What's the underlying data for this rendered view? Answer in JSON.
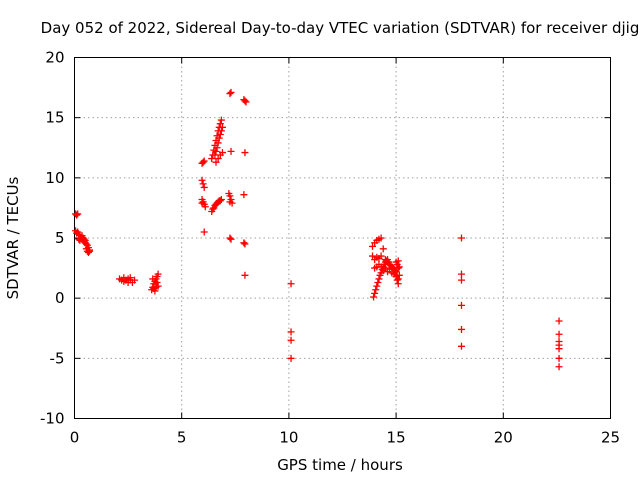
{
  "chart_data": {
    "type": "scatter",
    "title": "Day 052 of 2022, Sidereal Day-to-day VTEC variation (SDTVAR) for receiver djig",
    "xlabel": "GPS time / hours",
    "ylabel": "SDTVAR / TECUs",
    "xlim": [
      0,
      25
    ],
    "ylim": [
      -10,
      20
    ],
    "xticks": [
      0,
      5,
      10,
      15,
      20,
      25
    ],
    "yticks": [
      -10,
      -5,
      0,
      5,
      10,
      15,
      20
    ],
    "grid": true,
    "marker": "+",
    "color": "#ff0000",
    "series": [
      {
        "name": "SDTVAR",
        "points": [
          [
            0.05,
            7.0
          ],
          [
            0.1,
            6.9
          ],
          [
            0.15,
            7.0
          ],
          [
            0.05,
            5.6
          ],
          [
            0.1,
            5.4
          ],
          [
            0.15,
            5.5
          ],
          [
            0.2,
            5.3
          ],
          [
            0.25,
            5.2
          ],
          [
            0.3,
            5.0
          ],
          [
            0.35,
            4.9
          ],
          [
            0.4,
            4.8
          ],
          [
            0.45,
            4.7
          ],
          [
            0.5,
            4.6
          ],
          [
            0.55,
            4.5
          ],
          [
            0.6,
            4.4
          ],
          [
            0.65,
            4.2
          ],
          [
            0.7,
            4.0
          ],
          [
            0.6,
            3.9
          ],
          [
            0.55,
            4.1
          ],
          [
            0.2,
            4.9
          ],
          [
            0.25,
            4.8
          ],
          [
            0.35,
            5.2
          ],
          [
            0.4,
            5.0
          ],
          [
            0.45,
            4.9
          ],
          [
            0.5,
            4.8
          ],
          [
            0.65,
            3.8
          ],
          [
            0.7,
            3.9
          ],
          [
            2.1,
            1.6
          ],
          [
            2.2,
            1.5
          ],
          [
            2.3,
            1.4
          ],
          [
            2.4,
            1.5
          ],
          [
            2.5,
            1.6
          ],
          [
            2.6,
            1.5
          ],
          [
            2.7,
            1.3
          ],
          [
            2.8,
            1.5
          ],
          [
            2.5,
            1.3
          ],
          [
            2.3,
            1.7
          ],
          [
            2.6,
            1.7
          ],
          [
            3.6,
            0.7
          ],
          [
            3.65,
            0.9
          ],
          [
            3.7,
            1.2
          ],
          [
            3.75,
            1.4
          ],
          [
            3.8,
            1.6
          ],
          [
            3.85,
            1.8
          ],
          [
            3.9,
            2.0
          ],
          [
            3.65,
            1.6
          ],
          [
            3.7,
            0.8
          ],
          [
            3.8,
            0.9
          ],
          [
            3.9,
            1.0
          ],
          [
            3.75,
            0.6
          ],
          [
            3.85,
            1.3
          ],
          [
            5.95,
            11.2
          ],
          [
            6.0,
            11.3
          ],
          [
            6.05,
            11.4
          ],
          [
            5.95,
            9.8
          ],
          [
            6.0,
            9.5
          ],
          [
            6.05,
            9.2
          ],
          [
            5.95,
            8.2
          ],
          [
            6.0,
            8.0
          ],
          [
            6.05,
            7.8
          ],
          [
            6.1,
            7.6
          ],
          [
            5.95,
            7.9
          ],
          [
            6.05,
            5.5
          ],
          [
            6.4,
            11.6
          ],
          [
            6.45,
            11.9
          ],
          [
            6.5,
            12.3
          ],
          [
            6.55,
            12.7
          ],
          [
            6.6,
            13.1
          ],
          [
            6.65,
            13.5
          ],
          [
            6.7,
            13.9
          ],
          [
            6.75,
            14.2
          ],
          [
            6.8,
            14.5
          ],
          [
            6.85,
            14.8
          ],
          [
            6.6,
            12.2
          ],
          [
            6.65,
            12.5
          ],
          [
            6.7,
            12.9
          ],
          [
            6.75,
            13.3
          ],
          [
            6.8,
            13.6
          ],
          [
            6.85,
            13.9
          ],
          [
            6.9,
            14.2
          ],
          [
            6.55,
            11.9
          ],
          [
            6.6,
            11.3
          ],
          [
            6.7,
            11.6
          ],
          [
            6.8,
            11.9
          ],
          [
            6.9,
            12.1
          ],
          [
            6.4,
            7.2
          ],
          [
            6.45,
            7.4
          ],
          [
            6.5,
            7.5
          ],
          [
            6.55,
            7.7
          ],
          [
            6.6,
            7.8
          ],
          [
            6.65,
            7.9
          ],
          [
            6.7,
            8.0
          ],
          [
            6.75,
            8.1
          ],
          [
            6.8,
            8.1
          ],
          [
            6.85,
            8.2
          ],
          [
            7.25,
            17.0
          ],
          [
            7.3,
            17.1
          ],
          [
            7.3,
            12.2
          ],
          [
            7.2,
            8.7
          ],
          [
            7.25,
            8.5
          ],
          [
            7.3,
            8.2
          ],
          [
            7.35,
            7.9
          ],
          [
            7.25,
            8.0
          ],
          [
            7.25,
            5.0
          ],
          [
            7.3,
            4.9
          ],
          [
            7.9,
            16.5
          ],
          [
            7.95,
            16.4
          ],
          [
            8.0,
            16.3
          ],
          [
            7.95,
            12.1
          ],
          [
            7.9,
            8.6
          ],
          [
            7.9,
            4.6
          ],
          [
            7.95,
            4.5
          ],
          [
            7.95,
            1.9
          ],
          [
            10.1,
            1.2
          ],
          [
            10.1,
            -2.8
          ],
          [
            10.1,
            -3.5
          ],
          [
            10.1,
            -5.0
          ],
          [
            13.9,
            4.3
          ],
          [
            14.0,
            4.6
          ],
          [
            14.1,
            4.8
          ],
          [
            14.2,
            4.9
          ],
          [
            14.3,
            5.0
          ],
          [
            13.9,
            3.5
          ],
          [
            14.0,
            3.2
          ],
          [
            14.1,
            3.4
          ],
          [
            14.2,
            3.3
          ],
          [
            14.3,
            3.5
          ],
          [
            14.4,
            4.1
          ],
          [
            14.5,
            3.2
          ],
          [
            14.6,
            3.0
          ],
          [
            14.0,
            2.5
          ],
          [
            14.1,
            2.6
          ],
          [
            14.2,
            2.8
          ],
          [
            14.3,
            2.6
          ],
          [
            14.4,
            2.3
          ],
          [
            14.5,
            2.5
          ],
          [
            14.6,
            2.2
          ],
          [
            14.7,
            2.4
          ],
          [
            14.8,
            2.1
          ],
          [
            14.9,
            2.0
          ],
          [
            15.0,
            1.8
          ],
          [
            15.05,
            1.5
          ],
          [
            15.1,
            1.2
          ],
          [
            13.95,
            0.1
          ],
          [
            14.0,
            0.4
          ],
          [
            14.05,
            0.7
          ],
          [
            14.1,
            1.0
          ],
          [
            14.15,
            1.3
          ],
          [
            14.2,
            1.6
          ],
          [
            14.25,
            1.9
          ],
          [
            14.3,
            2.1
          ],
          [
            14.35,
            2.4
          ],
          [
            14.4,
            2.6
          ],
          [
            14.45,
            2.8
          ],
          [
            14.5,
            3.0
          ],
          [
            14.55,
            3.1
          ],
          [
            14.6,
            3.2
          ],
          [
            14.65,
            3.0
          ],
          [
            14.7,
            2.8
          ],
          [
            14.75,
            2.7
          ],
          [
            14.8,
            2.6
          ],
          [
            14.85,
            2.5
          ],
          [
            14.9,
            2.4
          ],
          [
            14.95,
            2.3
          ],
          [
            15.0,
            3.0
          ],
          [
            15.05,
            2.8
          ],
          [
            15.1,
            2.5
          ],
          [
            15.0,
            2.2
          ],
          [
            15.05,
            1.9
          ],
          [
            15.1,
            1.6
          ],
          [
            15.15,
            1.9
          ],
          [
            15.15,
            2.6
          ],
          [
            15.1,
            3.1
          ],
          [
            18.05,
            5.0
          ],
          [
            18.05,
            2.0
          ],
          [
            18.05,
            1.5
          ],
          [
            18.05,
            -0.6
          ],
          [
            18.05,
            -2.6
          ],
          [
            18.05,
            -4.0
          ],
          [
            22.6,
            -1.9
          ],
          [
            22.6,
            -3.0
          ],
          [
            22.6,
            -3.6
          ],
          [
            22.6,
            -3.9
          ],
          [
            22.6,
            -4.2
          ],
          [
            22.6,
            -5.0
          ],
          [
            22.6,
            -5.7
          ]
        ]
      }
    ]
  }
}
